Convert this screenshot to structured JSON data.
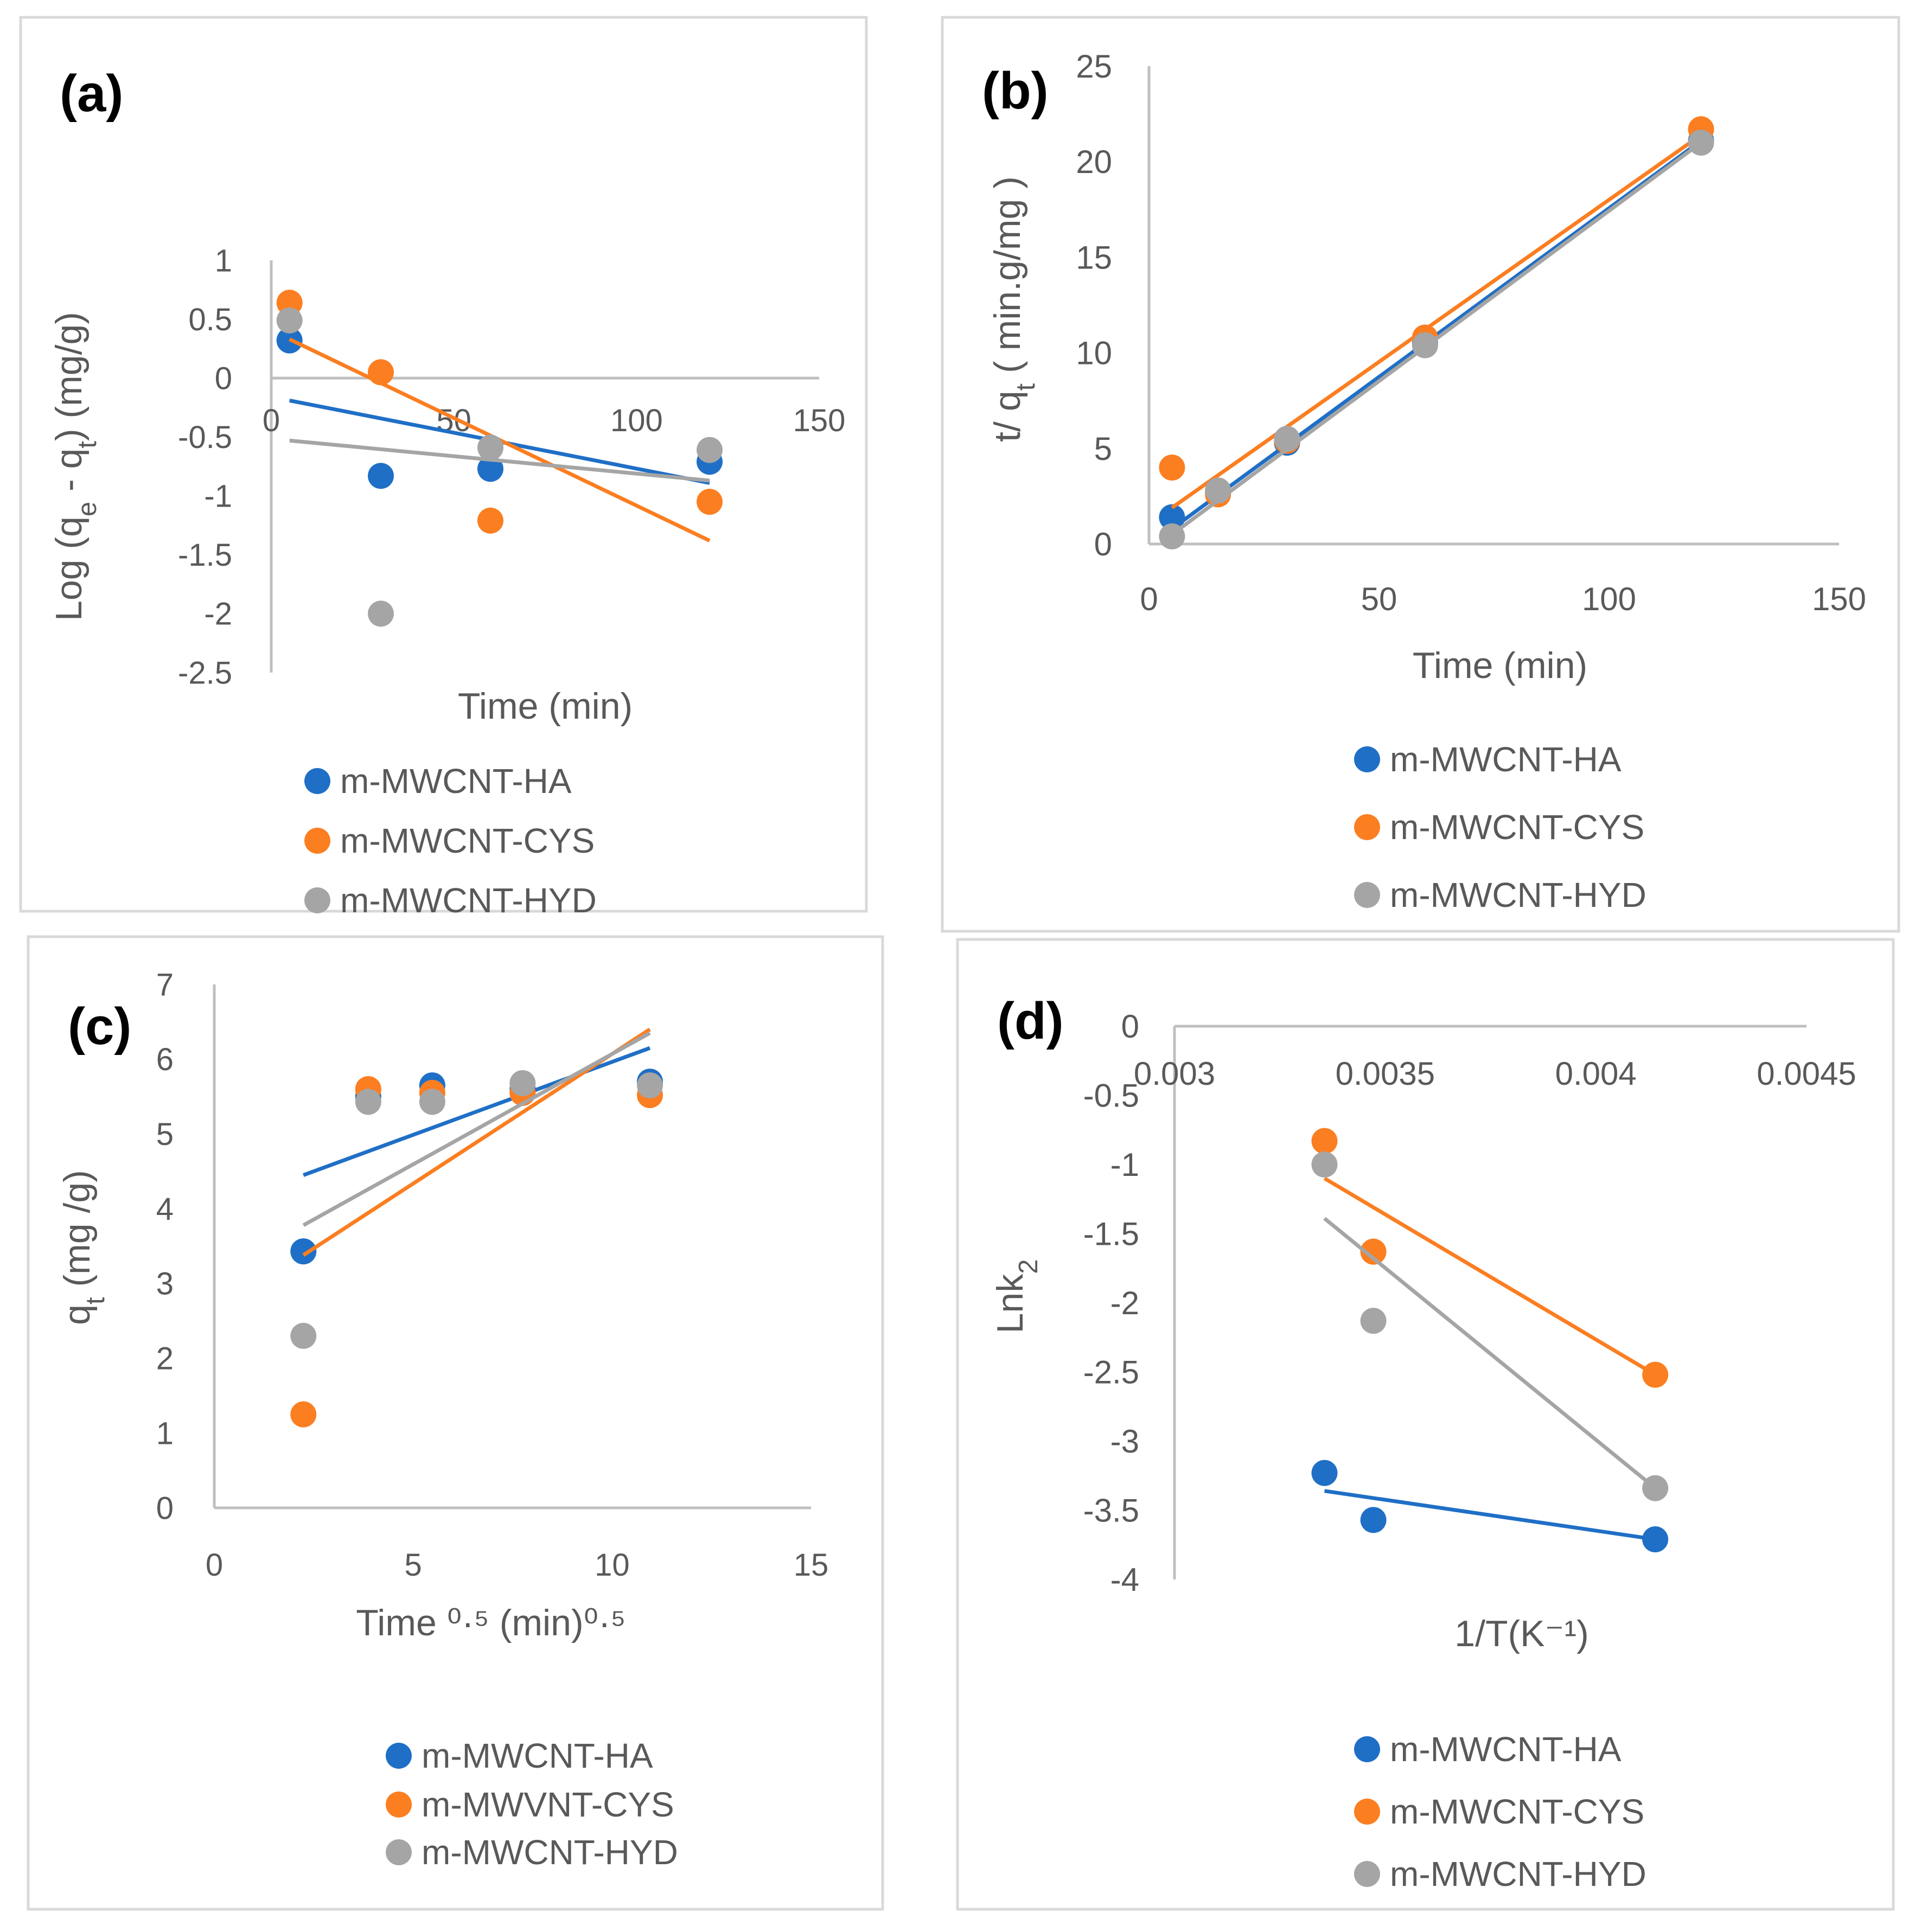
{
  "colors": {
    "blue": "#1f6fc6",
    "orange": "#fb7e21",
    "gray": "#a5a5a5",
    "axis": "#bfbfbf",
    "frame": "#d9d9d9",
    "text": "#595959"
  },
  "chart_data": [
    {
      "panel": "(a)",
      "type": "scatter",
      "ylabel_parts": [
        "Log (q",
        "e",
        " - q",
        "t",
        ")  (mg/g)"
      ],
      "xlabel": "Time (min)",
      "xlim": [
        0,
        150
      ],
      "ylim": [
        -2.5,
        1
      ],
      "xticks": [
        0,
        50,
        100,
        150
      ],
      "xtick_labels": [
        "0",
        "50",
        "100",
        "150"
      ],
      "yticks": [
        1,
        0.5,
        0,
        -0.5,
        -1,
        -1.5,
        -2,
        -2.5
      ],
      "ytick_labels": [
        "1",
        "0.5",
        "0",
        "-0.5",
        "-1",
        "-1.5",
        "-2",
        "-2.5"
      ],
      "legend": [
        "m-MWCNT-HA",
        "m-MWCNT-CYS",
        "m-MWCNT-HYD"
      ],
      "series": [
        {
          "name": "m-MWCNT-HA",
          "color": "blue",
          "x": [
            5,
            30,
            60,
            120
          ],
          "y": [
            0.32,
            -0.83,
            -0.77,
            -0.71
          ],
          "trend": {
            "x": [
              5,
              120
            ],
            "y": [
              -0.19,
              -0.89
            ]
          }
        },
        {
          "name": "m-MWCNT-CYS",
          "color": "orange",
          "x": [
            5,
            30,
            60,
            120
          ],
          "y": [
            0.64,
            0.05,
            -1.21,
            -1.05
          ],
          "trend": {
            "x": [
              5,
              120
            ],
            "y": [
              0.33,
              -1.38
            ]
          }
        },
        {
          "name": "m-MWCNT-HYD",
          "color": "gray",
          "x": [
            5,
            30,
            60,
            120
          ],
          "y": [
            0.49,
            -2.0,
            -0.59,
            -0.61
          ],
          "trend": {
            "x": [
              5,
              120
            ],
            "y": [
              -0.53,
              -0.87
            ]
          }
        }
      ]
    },
    {
      "panel": "(b)",
      "type": "scatter",
      "ylabel_parts": [
        "t/ q",
        "t",
        " ( min.g/mg )"
      ],
      "xlabel": "Time (min)",
      "xlim": [
        0,
        150
      ],
      "ylim": [
        0,
        25
      ],
      "xticks": [
        0,
        50,
        100,
        150
      ],
      "xtick_labels": [
        "0",
        "50",
        "100",
        "150"
      ],
      "yticks": [
        0,
        5,
        10,
        15,
        20,
        25
      ],
      "ytick_labels": [
        "0",
        "5",
        "10",
        "15",
        "20",
        "25"
      ],
      "legend": [
        "m-MWCNT-HA",
        "m-MWCNT-CYS",
        "m-MWCNT-HYD"
      ],
      "series": [
        {
          "name": "m-MWCNT-HA",
          "color": "blue",
          "x": [
            5,
            15,
            30,
            60,
            120
          ],
          "y": [
            1.4,
            2.7,
            5.3,
            10.5,
            21.1
          ],
          "trend": {
            "x": [
              5,
              120
            ],
            "y": [
              0.8,
              21.1
            ]
          }
        },
        {
          "name": "m-MWCNT-CYS",
          "color": "orange",
          "x": [
            5,
            15,
            30,
            60,
            120
          ],
          "y": [
            4.0,
            2.6,
            5.4,
            10.8,
            21.7
          ],
          "trend": {
            "x": [
              5,
              120
            ],
            "y": [
              1.9,
              21.4
            ]
          }
        },
        {
          "name": "m-MWCNT-HYD",
          "color": "gray",
          "x": [
            5,
            15,
            30,
            60,
            120
          ],
          "y": [
            0.4,
            2.8,
            5.5,
            10.4,
            21.0
          ],
          "trend": {
            "x": [
              5,
              120
            ],
            "y": [
              0.5,
              21.0
            ]
          }
        }
      ]
    },
    {
      "panel": "(c)",
      "type": "scatter",
      "ylabel_parts": [
        "q",
        "t",
        " (mg /g)"
      ],
      "xlabel": "Time ⁰·⁵ (min)⁰·⁵",
      "xlim": [
        0,
        15
      ],
      "ylim": [
        0,
        7
      ],
      "xticks": [
        0,
        5,
        10,
        15
      ],
      "xtick_labels": [
        "0",
        "5",
        "10",
        "15"
      ],
      "yticks": [
        0,
        1,
        2,
        3,
        4,
        5,
        6,
        7
      ],
      "ytick_labels": [
        "0",
        "1",
        "2",
        "3",
        "4",
        "5",
        "6",
        "7"
      ],
      "legend": [
        "m-MWCNT-HA",
        "m-MWVNT-CYS",
        "m-MWCNT-HYD"
      ],
      "series": [
        {
          "name": "m-MWCNT-HA",
          "color": "blue",
          "x": [
            2.24,
            3.87,
            5.48,
            7.75,
            10.95
          ],
          "y": [
            3.43,
            5.5,
            5.65,
            5.6,
            5.7
          ],
          "trend": {
            "x": [
              2.24,
              10.95
            ],
            "y": [
              4.45,
              6.15
            ]
          }
        },
        {
          "name": "m-MWVNT-CYS",
          "color": "orange",
          "x": [
            2.24,
            3.87,
            5.48,
            7.75,
            10.95
          ],
          "y": [
            1.25,
            5.6,
            5.55,
            5.55,
            5.52
          ],
          "trend": {
            "x": [
              2.24,
              10.95
            ],
            "y": [
              3.38,
              6.4
            ]
          }
        },
        {
          "name": "m-MWCNT-HYD",
          "color": "gray",
          "x": [
            2.24,
            3.87,
            5.48,
            7.75,
            10.95
          ],
          "y": [
            2.3,
            5.43,
            5.43,
            5.68,
            5.65
          ],
          "trend": {
            "x": [
              2.24,
              10.95
            ],
            "y": [
              3.78,
              6.35
            ]
          }
        }
      ]
    },
    {
      "panel": "(d)",
      "type": "scatter",
      "ylabel_parts": [
        "Lnk",
        "2",
        ""
      ],
      "xlabel": "1/T(K⁻¹)",
      "xlim": [
        0.003,
        0.0045
      ],
      "ylim": [
        -4,
        0
      ],
      "xticks": [
        0.003,
        0.0035,
        0.004,
        0.0045
      ],
      "xtick_labels": [
        "0.003",
        "0.0035",
        "0.004",
        "0.0045"
      ],
      "yticks": [
        0,
        -0.5,
        -1,
        -1.5,
        -2,
        -2.5,
        -3,
        -3.5,
        -4
      ],
      "ytick_labels": [
        "0",
        "-0.5",
        "-1",
        "-1.5",
        "-2",
        "-2.5",
        "-3",
        "-3.5",
        "-4"
      ],
      "legend": [
        "m-MWCNT-HA",
        "m-MWCNT-CYS",
        "m-MWCNT-HYD"
      ],
      "series": [
        {
          "name": "m-MWCNT-HA",
          "color": "blue",
          "x": [
            0.003356,
            0.003472,
            0.004141
          ],
          "y": [
            -3.23,
            -3.57,
            -3.71
          ],
          "trend": {
            "x": [
              0.003356,
              0.004141
            ],
            "y": [
              -3.36,
              -3.71
            ]
          }
        },
        {
          "name": "m-MWCNT-CYS",
          "color": "orange",
          "x": [
            0.003356,
            0.003472,
            0.004141
          ],
          "y": [
            -0.83,
            -1.63,
            -2.52
          ],
          "trend": {
            "x": [
              0.003356,
              0.004141
            ],
            "y": [
              -1.1,
              -2.52
            ]
          }
        },
        {
          "name": "m-MWCNT-HYD",
          "color": "gray",
          "x": [
            0.003356,
            0.003472,
            0.004141
          ],
          "y": [
            -1.0,
            -2.13,
            -3.34
          ],
          "trend": {
            "x": [
              0.003356,
              0.004141
            ],
            "y": [
              -1.39,
              -3.34
            ]
          }
        }
      ]
    }
  ]
}
